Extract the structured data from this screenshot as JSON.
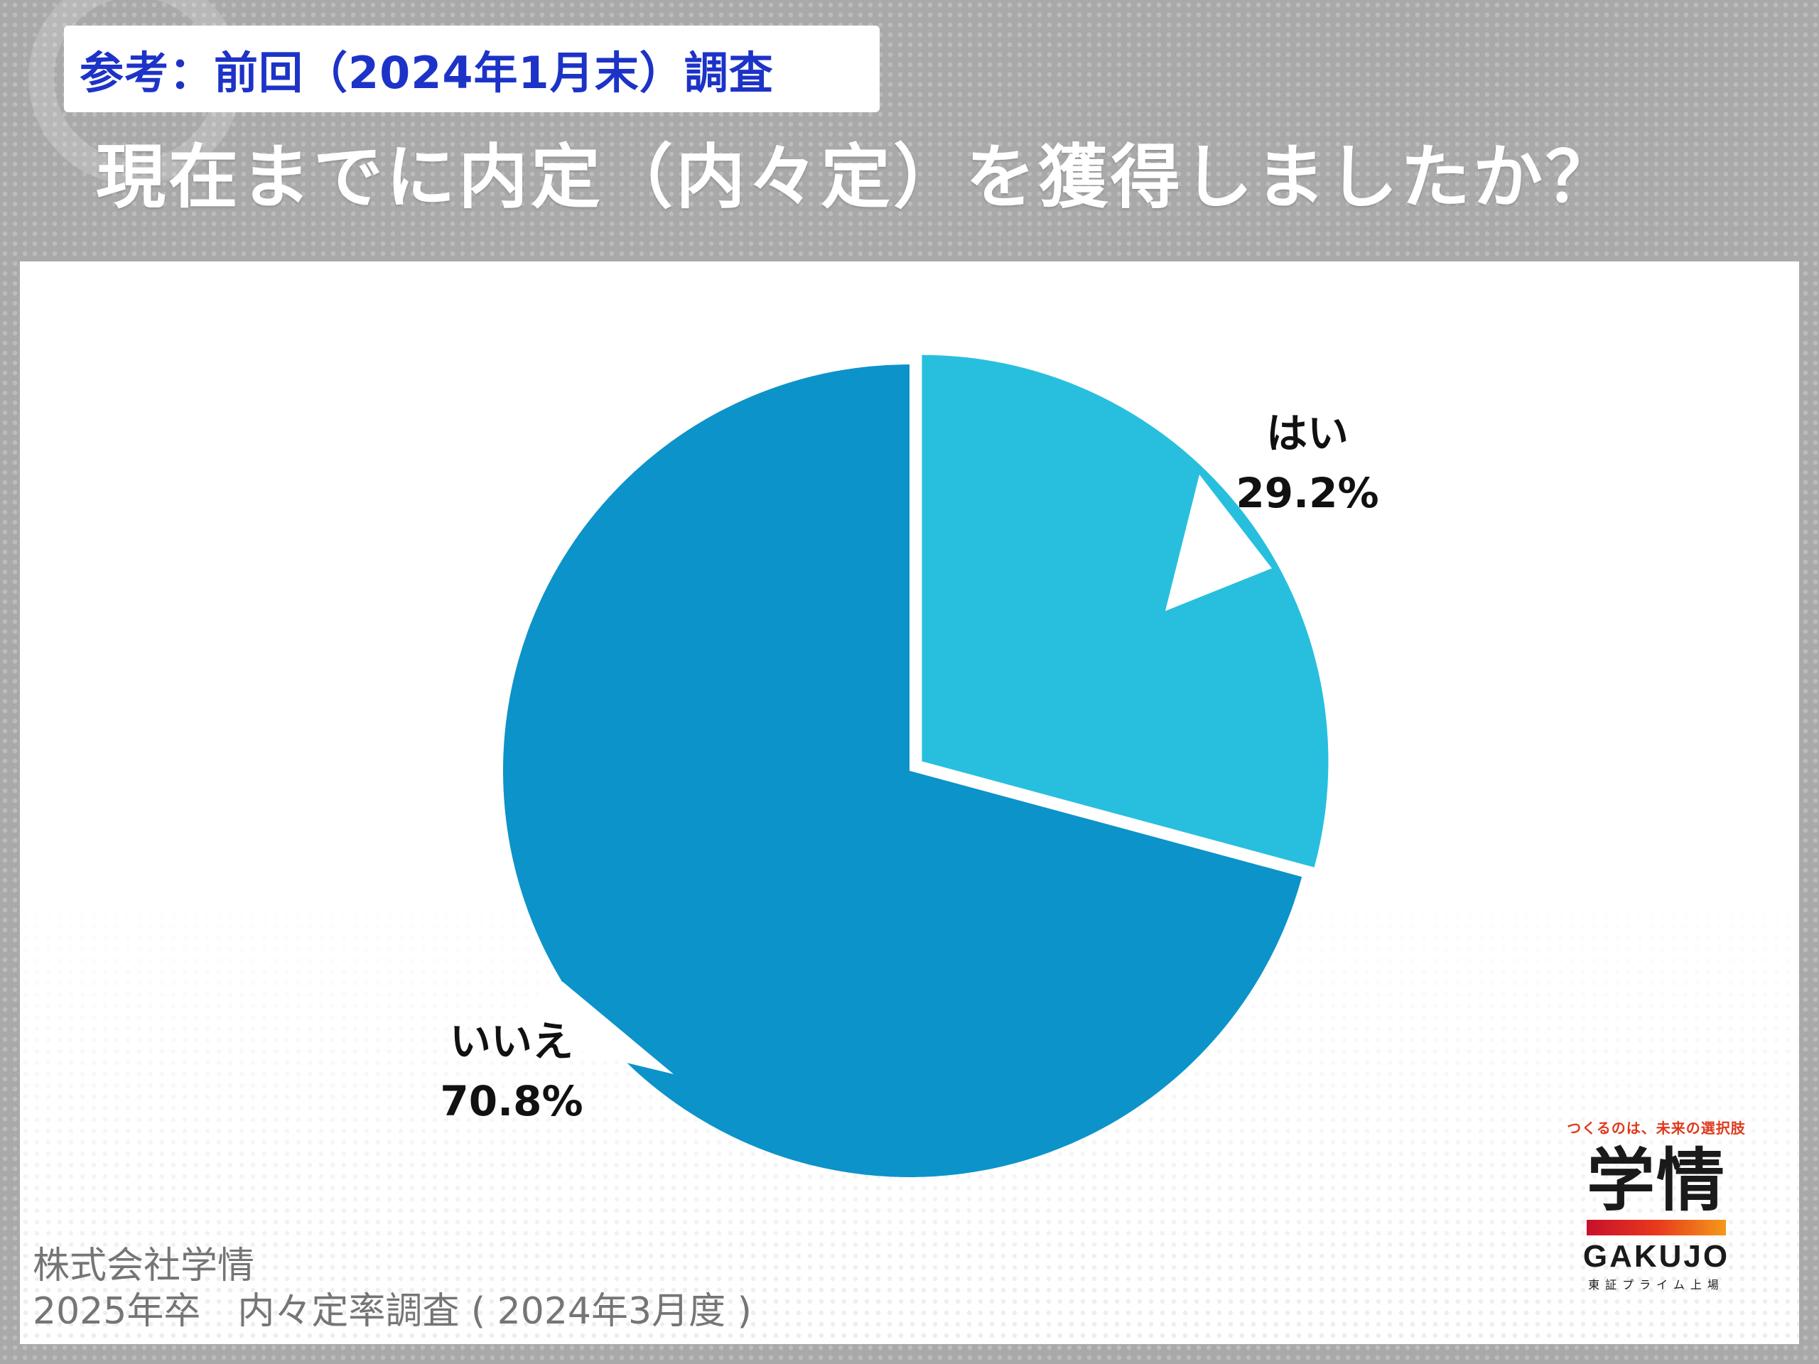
{
  "header": {
    "tag": "参考：前回（2024年1月末）調査",
    "title": "現在までに内定（内々定）を獲得しましたか？"
  },
  "chart_data": {
    "type": "pie",
    "title": "",
    "start_angle_deg": 0,
    "direction": "clockwise",
    "exploded_slice": "はい",
    "slices": [
      {
        "label": "はい",
        "value": 29.2,
        "value_label": "29.2%",
        "color": "#28bfdf"
      },
      {
        "label": "いいえ",
        "value": 70.8,
        "value_label": "70.8%",
        "color": "#0c93c9"
      }
    ]
  },
  "footer": {
    "company": "株式会社学情",
    "survey": "2025年卒　内々定率調査 ( 2024年3月度 )"
  },
  "logo": {
    "tagline": "つくるのは、未来の選択肢",
    "kanji": "学情",
    "roman": "GAKUJO",
    "listing": "東証プライム上場"
  }
}
